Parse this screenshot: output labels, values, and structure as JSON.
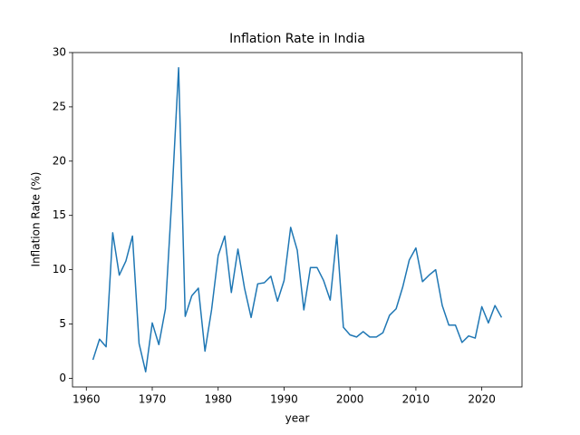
{
  "chart_data": {
    "type": "line",
    "title": "Inflation Rate in India",
    "x_label": "year",
    "y_label": "Inflation Rate (%)",
    "x": [
      1961,
      1962,
      1963,
      1964,
      1965,
      1966,
      1967,
      1968,
      1969,
      1970,
      1971,
      1972,
      1973,
      1974,
      1975,
      1976,
      1977,
      1978,
      1979,
      1980,
      1981,
      1982,
      1983,
      1984,
      1985,
      1986,
      1987,
      1988,
      1989,
      1990,
      1991,
      1992,
      1993,
      1994,
      1995,
      1996,
      1997,
      1998,
      1999,
      2000,
      2001,
      2002,
      2003,
      2004,
      2005,
      2006,
      2007,
      2008,
      2009,
      2010,
      2011,
      2012,
      2013,
      2014,
      2015,
      2016,
      2017,
      2018,
      2019,
      2020,
      2021,
      2022,
      2023
    ],
    "series": [
      {
        "name": "Inflation Rate (%)",
        "color": "#1f77b4",
        "values": [
          1.7,
          3.6,
          2.9,
          13.4,
          9.5,
          10.8,
          13.1,
          3.2,
          0.6,
          5.1,
          3.1,
          6.4,
          16.9,
          28.6,
          5.7,
          7.6,
          8.3,
          2.5,
          6.3,
          11.3,
          13.1,
          7.9,
          11.9,
          8.3,
          5.6,
          8.7,
          8.8,
          9.4,
          7.1,
          9.0,
          13.9,
          11.8,
          6.3,
          10.2,
          10.2,
          9.0,
          7.2,
          13.2,
          4.7,
          4.0,
          3.8,
          4.3,
          3.8,
          3.8,
          4.2,
          5.8,
          6.4,
          8.4,
          10.9,
          12.0,
          8.9,
          9.5,
          10.0,
          6.7,
          4.9,
          4.9,
          3.3,
          3.9,
          3.7,
          6.6,
          5.1,
          6.7,
          5.6
        ]
      }
    ],
    "xlim": [
      1957.9,
      2026.1
    ],
    "ylim": [
      -0.8,
      30.0
    ],
    "xticks": [
      1960,
      1970,
      1980,
      1990,
      2000,
      2010,
      2020
    ],
    "yticks": [
      0,
      5,
      10,
      15,
      20,
      25,
      30
    ]
  }
}
